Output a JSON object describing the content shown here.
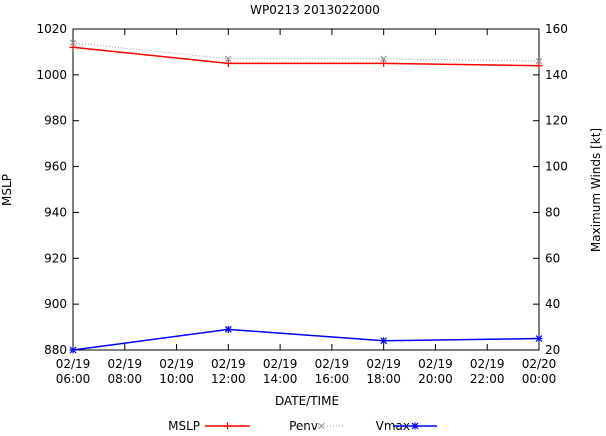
{
  "chart_data": {
    "type": "line",
    "title": "WP0213 2013022000",
    "xlabel": "DATE/TIME",
    "ylabel_left": "MSLP",
    "ylabel_right": "Maximum Winds [kt]",
    "x_ticks": [
      {
        "t": 0,
        "line1": "02/19",
        "line2": "06:00"
      },
      {
        "t": 2,
        "line1": "02/19",
        "line2": "08:00"
      },
      {
        "t": 4,
        "line1": "02/19",
        "line2": "10:00"
      },
      {
        "t": 6,
        "line1": "02/19",
        "line2": "12:00"
      },
      {
        "t": 8,
        "line1": "02/19",
        "line2": "14:00"
      },
      {
        "t": 10,
        "line1": "02/19",
        "line2": "16:00"
      },
      {
        "t": 12,
        "line1": "02/19",
        "line2": "18:00"
      },
      {
        "t": 14,
        "line1": "02/19",
        "line2": "20:00"
      },
      {
        "t": 16,
        "line1": "02/19",
        "line2": "22:00"
      },
      {
        "t": 18,
        "line1": "02/20",
        "line2": "00:00"
      }
    ],
    "xlim": [
      0,
      18
    ],
    "ylim_left": [
      880,
      1020
    ],
    "yticks_left": [
      "880",
      "900",
      "920",
      "940",
      "960",
      "980",
      "1000",
      "1020"
    ],
    "ylim_right": [
      20,
      160
    ],
    "yticks_right": [
      "20",
      "40",
      "60",
      "80",
      "100",
      "120",
      "140",
      "160"
    ],
    "legend_position": "bottom",
    "grid": false,
    "series": [
      {
        "name": "MSLP",
        "axis": "left",
        "color": "#ff0000",
        "style": "solid",
        "marker": "plus",
        "x": [
          "02/19 06:00",
          "02/19 12:00",
          "02/19 18:00",
          "02/20 00:00"
        ],
        "t": [
          0,
          6,
          12,
          18
        ],
        "values": [
          1012,
          1005,
          1005,
          1004
        ]
      },
      {
        "name": "Penv",
        "axis": "left",
        "color": "#999999",
        "style": "dotted",
        "marker": "cross",
        "x": [
          "02/19 06:00",
          "02/19 12:00",
          "02/19 18:00",
          "02/20 00:00"
        ],
        "t": [
          0,
          6,
          12,
          18
        ],
        "values": [
          1014,
          1007,
          1007,
          1006
        ]
      },
      {
        "name": "Vmax",
        "axis": "right",
        "color": "#0000ff",
        "style": "solid",
        "marker": "star",
        "x": [
          "02/19 06:00",
          "02/19 12:00",
          "02/19 18:00",
          "02/20 00:00"
        ],
        "t": [
          0,
          6,
          12,
          18
        ],
        "values": [
          20,
          29,
          24,
          25
        ]
      }
    ]
  }
}
